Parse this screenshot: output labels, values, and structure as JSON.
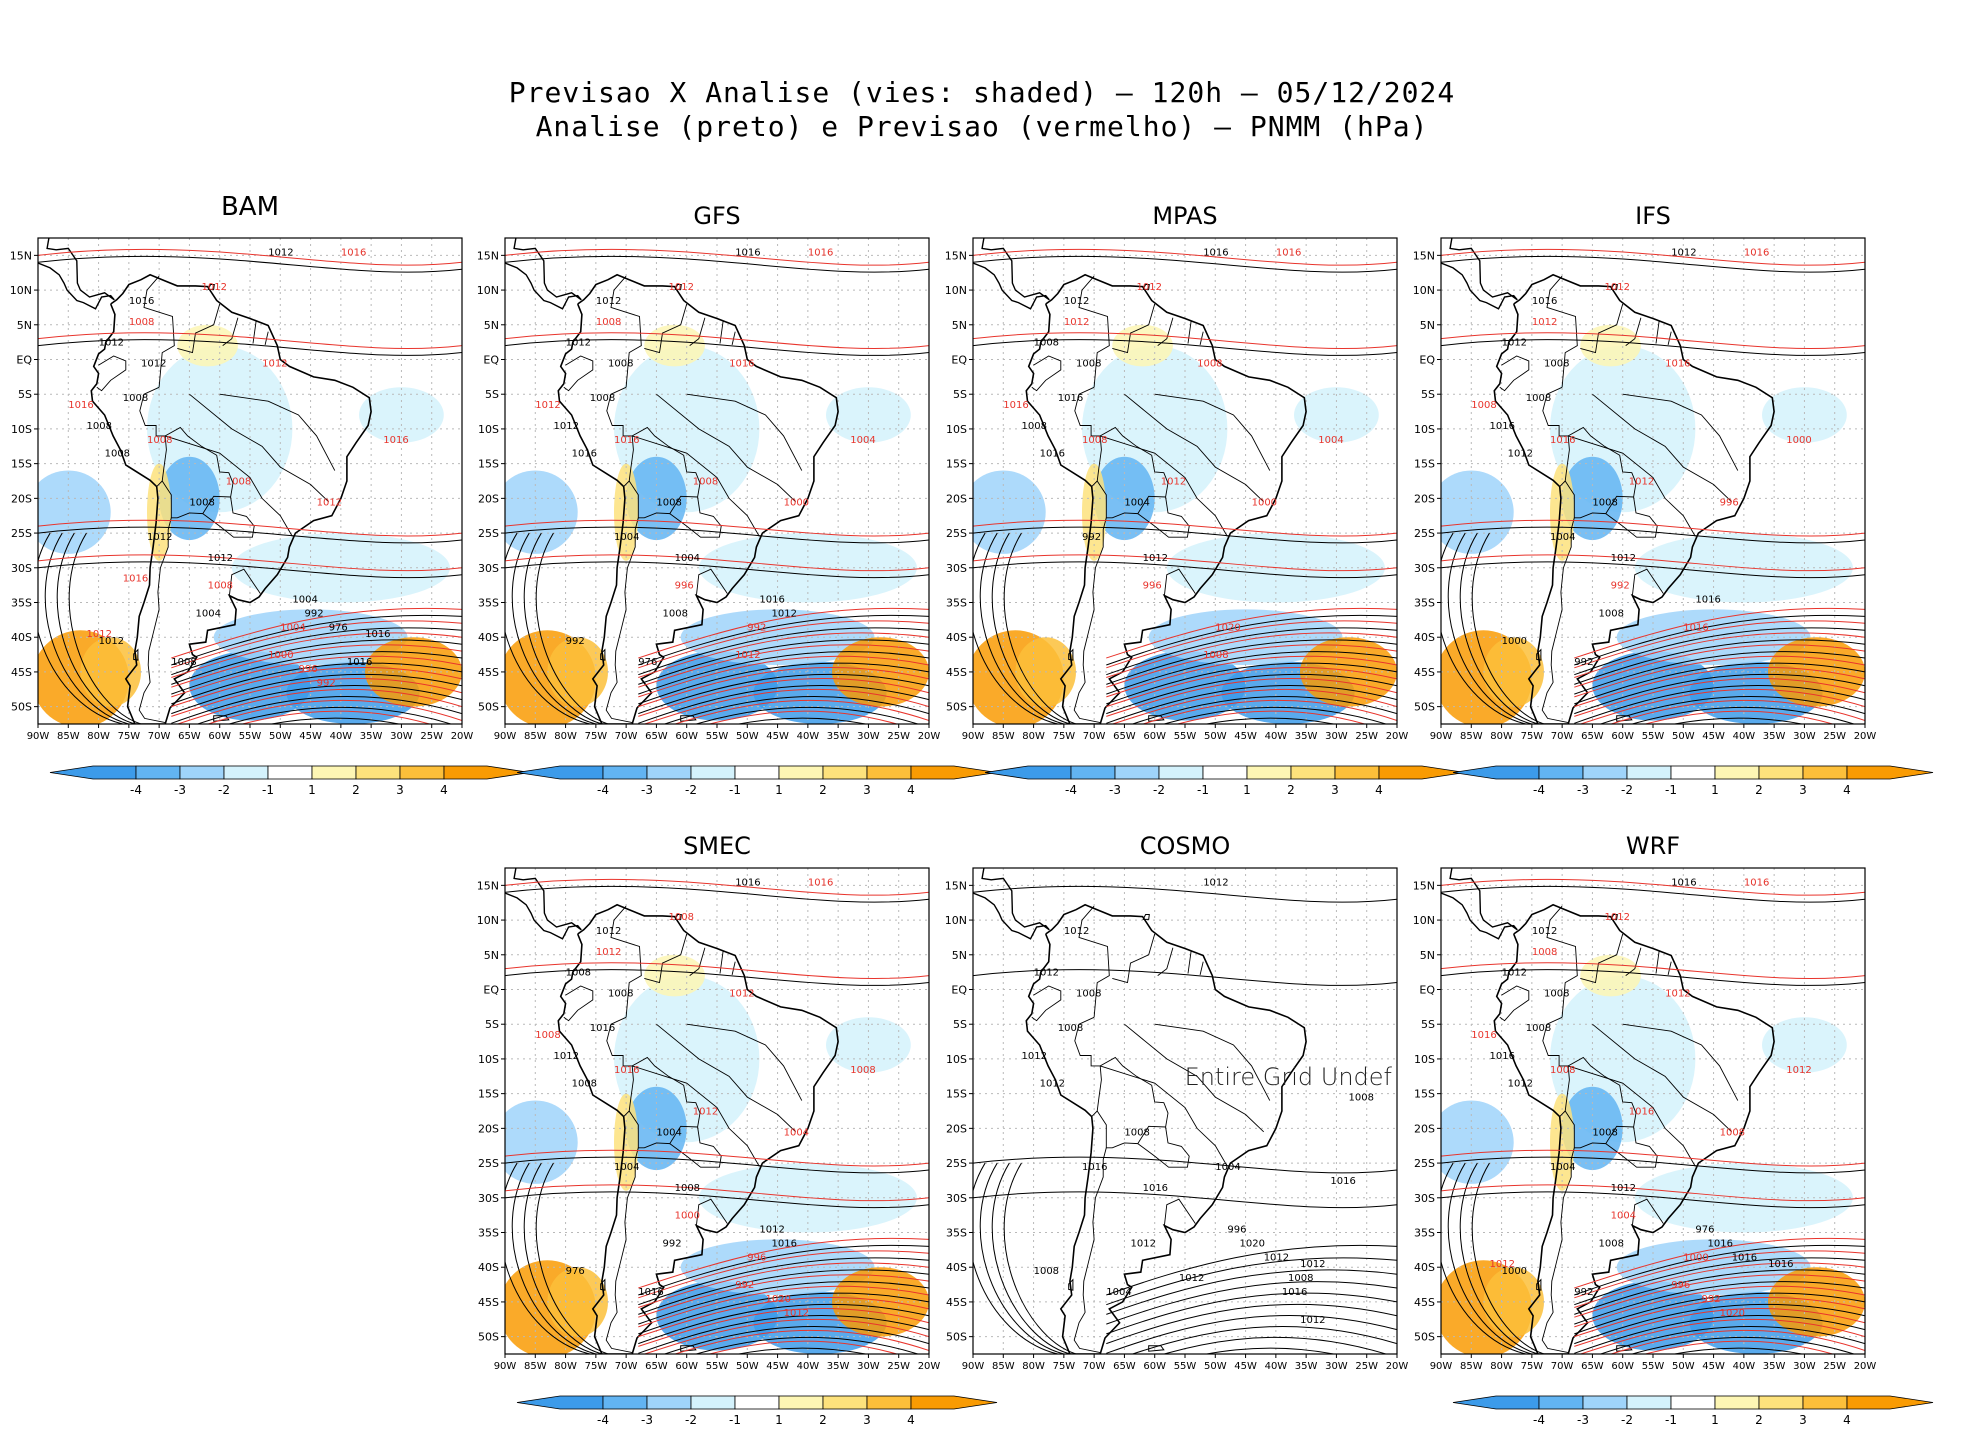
{
  "header": {
    "title_line1": "Previsao X Analise (vies: shaded) – 120h – 05/12/2024",
    "title_line2": "Analise (preto) e Previsao (vermelho) – PNMM (hPa)"
  },
  "axes": {
    "lat_labels": [
      "15N",
      "10N",
      "5N",
      "EQ",
      "5S",
      "10S",
      "15S",
      "20S",
      "25S",
      "30S",
      "35S",
      "40S",
      "45S",
      "50S"
    ],
    "lon_labels": [
      "90W",
      "85W",
      "80W",
      "75W",
      "70W",
      "65W",
      "60W",
      "55W",
      "50W",
      "45W",
      "40W",
      "35W",
      "30W",
      "25W",
      "20W"
    ]
  },
  "colorbar": {
    "labels": [
      "-4",
      "-3",
      "-2",
      "-1",
      "1",
      "2",
      "3",
      "4"
    ],
    "colors": [
      "#3c9bea",
      "#62b4f2",
      "#9fd4fa",
      "#d4f2fc",
      "#ffffff",
      "#fdf6b4",
      "#fde27c",
      "#fcbf3a",
      "#f99b03"
    ]
  },
  "colors": {
    "analysis": "#000000",
    "forecast": "#e8342c",
    "grid": "#b9b9b9"
  },
  "panels": [
    {
      "name": "BAM",
      "black_labels": [
        "1012",
        "1016",
        "1012",
        "1012",
        "1008",
        "1008",
        "1008",
        "1008",
        "1012",
        "1012",
        "1004",
        "1012",
        "1008",
        "1004",
        "992",
        "976",
        "1016",
        "1016"
      ],
      "red_labels": [
        "1016",
        "1012",
        "1008",
        "1012",
        "1016",
        "1008",
        "1008",
        "1016",
        "1012",
        "1008",
        "1004",
        "1000",
        "996",
        "992",
        "1012",
        "1016"
      ]
    },
    {
      "name": "GFS",
      "black_labels": [
        "1016",
        "1012",
        "1012",
        "1008",
        "1008",
        "1012",
        "1016",
        "1008",
        "1004",
        "1004",
        "1008",
        "992",
        "976",
        "1016",
        "1012"
      ],
      "red_labels": [
        "1016",
        "1012",
        "1008",
        "1016",
        "1012",
        "1016",
        "1008",
        "1004",
        "1000",
        "996",
        "992",
        "1012"
      ]
    },
    {
      "name": "MPAS",
      "black_labels": [
        "1016",
        "1012",
        "1008",
        "1008",
        "1016",
        "1008",
        "1016",
        "1004",
        "992",
        "1012"
      ],
      "red_labels": [
        "1016",
        "1012",
        "1012",
        "1008",
        "1016",
        "1008",
        "1012",
        "1004",
        "1000",
        "996",
        "1020",
        "1008"
      ]
    },
    {
      "name": "IFS",
      "black_labels": [
        "1012",
        "1016",
        "1012",
        "1008",
        "1008",
        "1016",
        "1012",
        "1008",
        "1004",
        "1012",
        "1008",
        "1000",
        "992",
        "1016"
      ],
      "red_labels": [
        "1016",
        "1012",
        "1012",
        "1016",
        "1008",
        "1016",
        "1012",
        "1000",
        "996",
        "992",
        "1016"
      ]
    },
    {
      "name": "SMEC",
      "black_labels": [
        "1016",
        "1012",
        "1008",
        "1008",
        "1016",
        "1012",
        "1008",
        "1004",
        "1004",
        "1008",
        "992",
        "976",
        "1016",
        "1012",
        "1016"
      ],
      "red_labels": [
        "1016",
        "1008",
        "1012",
        "1012",
        "1008",
        "1016",
        "1012",
        "1008",
        "1004",
        "1000",
        "996",
        "992",
        "1020",
        "1012"
      ]
    },
    {
      "name": "COSMO",
      "black_labels": [
        "1012",
        "1012",
        "1012",
        "1008",
        "1008",
        "1012",
        "1012",
        "1008",
        "1016",
        "1016",
        "1012",
        "1008",
        "1004",
        "996",
        "1020",
        "1012",
        "1012",
        "1016",
        "1012",
        "1008",
        "1004",
        "1008",
        "1012",
        "1016"
      ],
      "red_labels": [],
      "message": "Entire Grid Undef"
    },
    {
      "name": "WRF",
      "black_labels": [
        "1016",
        "1012",
        "1012",
        "1008",
        "1008",
        "1016",
        "1012",
        "1008",
        "1004",
        "1012",
        "1008",
        "1000",
        "992",
        "976",
        "1016",
        "1016",
        "1016"
      ],
      "red_labels": [
        "1016",
        "1012",
        "1008",
        "1012",
        "1016",
        "1008",
        "1016",
        "1012",
        "1008",
        "1004",
        "1000",
        "996",
        "992",
        "1020",
        "1012"
      ]
    }
  ]
}
